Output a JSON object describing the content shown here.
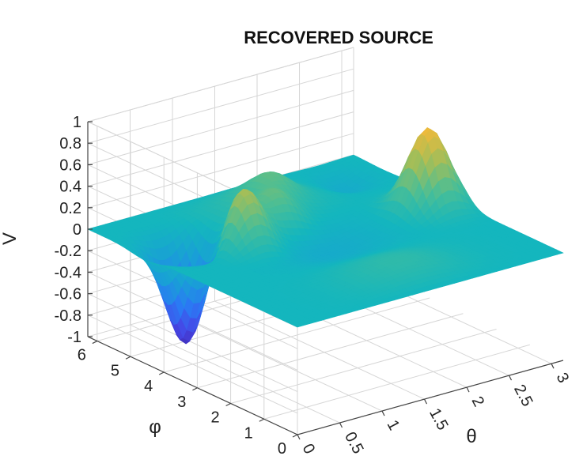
{
  "chart_data": {
    "type": "surface",
    "title": "RECOVERED SOURCE",
    "xlabel": "θ",
    "ylabel": "φ",
    "zlabel": "V",
    "xlim": [
      0,
      3.14
    ],
    "ylim": [
      0,
      6.28
    ],
    "zlim": [
      -1,
      1
    ],
    "x_ticks": [
      "0",
      "0.5",
      "1",
      "1.5",
      "2",
      "2.5",
      "3"
    ],
    "y_ticks": [
      "0",
      "1",
      "2",
      "3",
      "4",
      "5",
      "6"
    ],
    "z_ticks": [
      "-1",
      "-0.8",
      "-0.6",
      "-0.4",
      "-0.2",
      "0",
      "0.2",
      "0.4",
      "0.6",
      "0.8",
      "1"
    ],
    "colormap": "parula",
    "grid": true,
    "peaks": [
      {
        "theta": 0.5,
        "phi": 4.6,
        "value": -0.95
      },
      {
        "theta": 0.9,
        "phi": 3.9,
        "value": 0.55
      },
      {
        "theta": 1.45,
        "phi": 4.3,
        "value": 0.28
      },
      {
        "theta": 1.75,
        "phi": 5.2,
        "value": 0.18
      },
      {
        "theta": 2.85,
        "phi": 3.3,
        "value": 0.75
      },
      {
        "theta": 2.7,
        "phi": 5.4,
        "value": -0.12
      }
    ]
  }
}
